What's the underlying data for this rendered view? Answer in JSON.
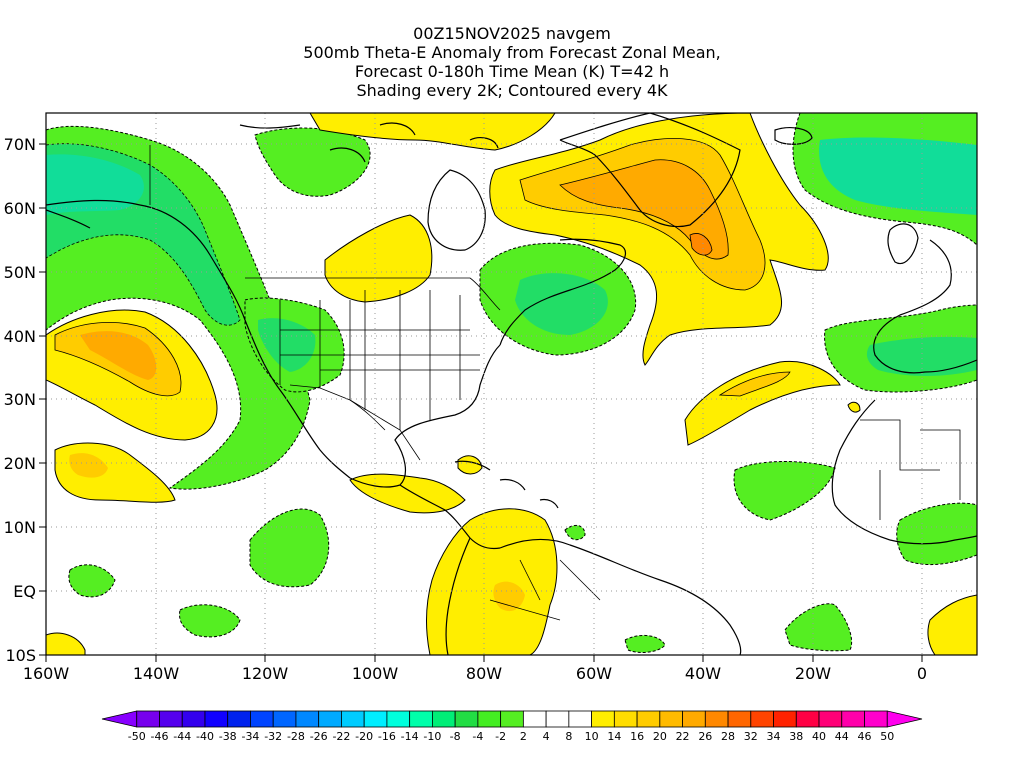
{
  "title": {
    "lines": [
      "00Z15NOV2025 navgem",
      "500mb Theta-E Anomaly from Forecast Zonal Mean,",
      "Forecast 0-180h Time Mean (K) T=42 h",
      "Shading every 2K; Contoured every 4K"
    ]
  },
  "map": {
    "lon_range": [
      -160,
      10
    ],
    "lat_range": [
      -10,
      75
    ],
    "lon_ticks": [
      "160W",
      "140W",
      "120W",
      "100W",
      "80W",
      "60W",
      "40W",
      "20W",
      "0"
    ],
    "lat_ticks": [
      "10S",
      "EQ",
      "10N",
      "20N",
      "30N",
      "40N",
      "50N",
      "60N",
      "70N"
    ],
    "colors": {
      "green_light": "#55ee22",
      "green_mid": "#22dd66",
      "green_teal": "#11dd99",
      "yellow": "#ffee00",
      "yellow_orange": "#ffcc00",
      "orange": "#ffaa00",
      "orange_dark": "#ff8800"
    }
  },
  "colorbar": {
    "labels": [
      "-50",
      "-46",
      "-44",
      "-40",
      "-38",
      "-34",
      "-32",
      "-28",
      "-26",
      "-22",
      "-20",
      "-16",
      "-14",
      "-10",
      "-8",
      "-4",
      "-2",
      "2",
      "4",
      "8",
      "10",
      "14",
      "16",
      "20",
      "22",
      "26",
      "28",
      "32",
      "34",
      "38",
      "40",
      "44",
      "46",
      "50"
    ],
    "colors": [
      "#8800ff",
      "#7700ee",
      "#5500ee",
      "#3300ee",
      "#1100ff",
      "#0022ee",
      "#0044ff",
      "#0066ff",
      "#0088ff",
      "#00aaff",
      "#00ccff",
      "#00eeff",
      "#00ffdd",
      "#00ffaa",
      "#00ee77",
      "#22dd44",
      "#44ee22",
      "#55ee22",
      "#ffffff",
      "#ffffff",
      "#ffffff",
      "#ffee00",
      "#ffdd00",
      "#ffcc00",
      "#ffbb00",
      "#ffaa00",
      "#ff8800",
      "#ff6600",
      "#ff4400",
      "#ff2200",
      "#ff0044",
      "#ff0077",
      "#ff00aa",
      "#ff00cc",
      "#ff00ee"
    ]
  }
}
